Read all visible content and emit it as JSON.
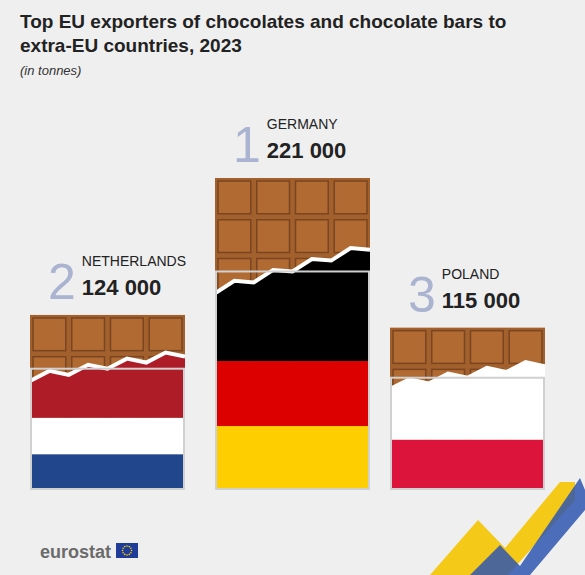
{
  "chart_data": {
    "type": "bar",
    "title": "Top EU exporters of chocolates and chocolate bars to extra-EU countries, 2023",
    "subtitle": "(in tonnes)",
    "categories": [
      "NETHERLANDS",
      "GERMANY",
      "POLAND"
    ],
    "values": [
      124000,
      221000,
      115000
    ],
    "value_labels": [
      "124 000",
      "221 000",
      "115 000"
    ],
    "ranks": [
      2,
      1,
      3
    ],
    "color": "#a2602c",
    "ylim": [
      0,
      221000
    ],
    "data_labels": true,
    "tick_labels": false,
    "source": "eurostat"
  }
}
